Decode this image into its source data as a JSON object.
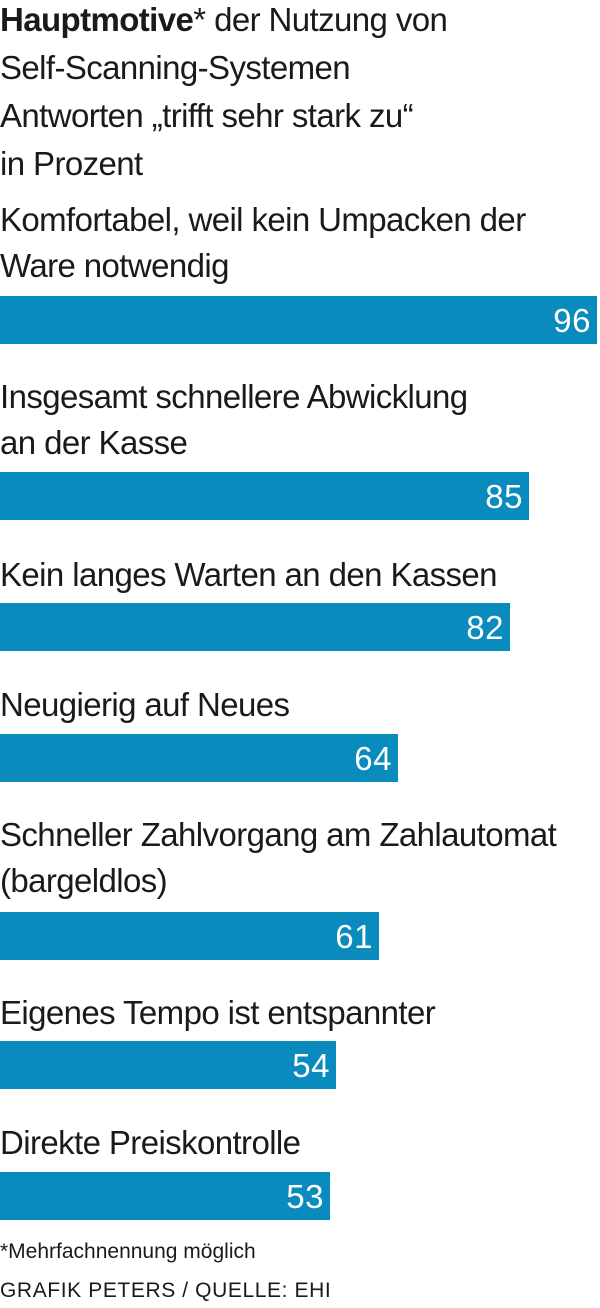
{
  "header": {
    "title_bold": "Hauptmotive",
    "title_rest": "* der Nutzung von",
    "subtitle_line2": "Self-Scanning-Systemen",
    "subtitle_line3": "Antworten „trifft sehr stark zu“",
    "subtitle_line4": "in Prozent"
  },
  "chart_data": {
    "type": "bar",
    "orientation": "horizontal",
    "categories": [
      [
        "Komfortabel, weil kein Umpacken der",
        "Ware notwendig"
      ],
      [
        "Insgesamt schnellere Abwicklung",
        "an der Kasse"
      ],
      [
        "Kein langes Warten an den Kassen"
      ],
      [
        "Neugierig auf Neues"
      ],
      [
        "Schneller Zahlvorgang am Zahlautomat",
        "(bargeldlos)"
      ],
      [
        "Eigenes Tempo ist entspannter"
      ],
      [
        "Direkte Preiskontrolle"
      ]
    ],
    "values": [
      96,
      85,
      82,
      64,
      61,
      54,
      53
    ],
    "value_labels": [
      "96",
      "85",
      "82",
      "64",
      "61",
      "54",
      "53"
    ],
    "xlim": [
      0,
      96
    ],
    "bar_color": "#0a8bbd",
    "value_label_color": "#ffffff",
    "grid": false,
    "legend": false
  },
  "footer": {
    "footnote": "*Mehrfachnennung möglich",
    "source": "GRAFIK PETERS / QUELLE: EHI"
  }
}
